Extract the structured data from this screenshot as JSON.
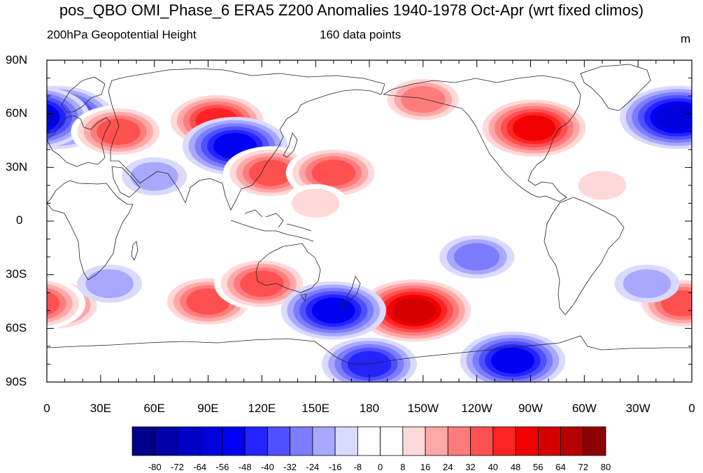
{
  "title": "pos_QBO OMI_Phase_6 ERA5 Z200 Anomalies 1940-1978 Oct-Apr (wrt fixed climos)",
  "left_subtitle": "200hPa Geopotential Height",
  "center_subtitle": "160 data points",
  "units": "m",
  "lat_labels": [
    "90N",
    "60N",
    "30N",
    "0",
    "30S",
    "60S",
    "90S"
  ],
  "lon_labels": [
    "0",
    "30E",
    "60E",
    "90E",
    "120E",
    "150E",
    "180",
    "150W",
    "120W",
    "90W",
    "60W",
    "30W",
    "0"
  ],
  "colorbar": {
    "labels": [
      "-80",
      "-72",
      "-64",
      "-56",
      "-48",
      "-40",
      "-32",
      "-24",
      "-16",
      "-8",
      "0",
      "8",
      "16",
      "24",
      "32",
      "40",
      "48",
      "56",
      "64",
      "72",
      "80"
    ],
    "colors": [
      "#00008b",
      "#0000a8",
      "#0000c4",
      "#0000dc",
      "#0000f2",
      "#2424ff",
      "#5050ff",
      "#7c7cff",
      "#a8a8ff",
      "#dadaff",
      "#ffffff",
      "#ffffff",
      "#ffd8d8",
      "#ffa8a8",
      "#ff7c7c",
      "#ff5050",
      "#ff2424",
      "#f00000",
      "#d40000",
      "#b40000",
      "#8b0000"
    ]
  },
  "map": {
    "projection": "cylindrical equidistant",
    "center_longitude": "180",
    "variable": "Z200 anomaly",
    "anomaly_centers": [
      {
        "lon": 95,
        "lat": 56,
        "value": 48
      },
      {
        "lon": 105,
        "lat": 42,
        "value": -48
      },
      {
        "lon": 125,
        "lat": 27,
        "value": 40
      },
      {
        "lon": 160,
        "lat": 27,
        "value": 40
      },
      {
        "lon": 272,
        "lat": 52,
        "value": 56
      },
      {
        "lon": 210,
        "lat": 68,
        "value": 32
      },
      {
        "lon": 5,
        "lat": 58,
        "value": -56
      },
      {
        "lon": 352,
        "lat": 58,
        "value": -56
      },
      {
        "lon": 40,
        "lat": 50,
        "value": 40
      },
      {
        "lon": 205,
        "lat": -50,
        "value": 64
      },
      {
        "lon": 90,
        "lat": -45,
        "value": 40
      },
      {
        "lon": 120,
        "lat": -35,
        "value": 40
      },
      {
        "lon": 5,
        "lat": -47,
        "value": 40
      },
      {
        "lon": 355,
        "lat": -46,
        "value": 40
      },
      {
        "lon": 160,
        "lat": -50,
        "value": -48
      },
      {
        "lon": 260,
        "lat": -78,
        "value": -48
      },
      {
        "lon": 180,
        "lat": -80,
        "value": -40
      },
      {
        "lon": 240,
        "lat": -20,
        "value": -24
      },
      {
        "lon": 60,
        "lat": 25,
        "value": -16
      },
      {
        "lon": 35,
        "lat": -35,
        "value": -16
      },
      {
        "lon": 335,
        "lat": -35,
        "value": -16
      },
      {
        "lon": 310,
        "lat": 20,
        "value": 16
      },
      {
        "lon": 150,
        "lat": 10,
        "value": 16
      }
    ]
  }
}
